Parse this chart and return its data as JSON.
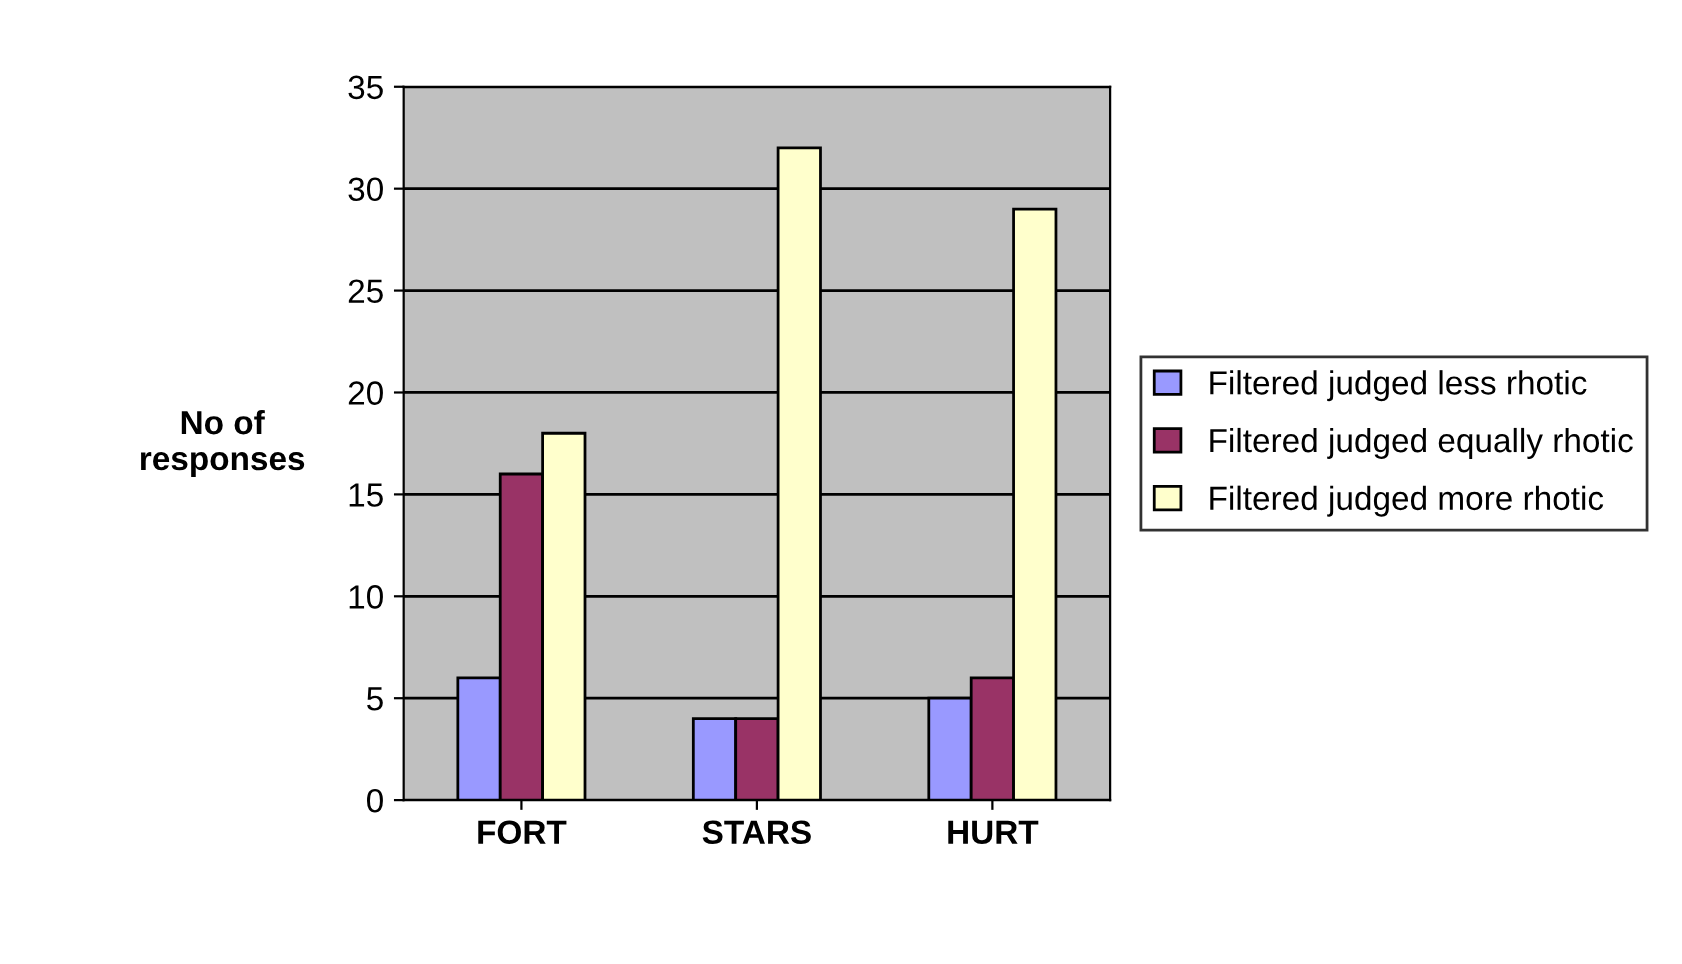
{
  "chart_data": {
    "type": "bar",
    "ylabel": "No of\nresponses",
    "categories": [
      "FORT",
      "STARS",
      "HURT"
    ],
    "series": [
      {
        "name": "Filtered judged less rhotic",
        "color": "#9999ff",
        "values": [
          6,
          4,
          5
        ]
      },
      {
        "name": "Filtered judged equally rhotic",
        "color": "#993366",
        "values": [
          16,
          4,
          6
        ]
      },
      {
        "name": "Filtered judged more rhotic",
        "color": "#ffffcc",
        "values": [
          18,
          32,
          29
        ]
      }
    ],
    "ylim": [
      0,
      35
    ],
    "yticks": [
      0,
      5,
      10,
      15,
      20,
      25,
      30,
      35
    ],
    "grid": "y",
    "legend": "right"
  }
}
